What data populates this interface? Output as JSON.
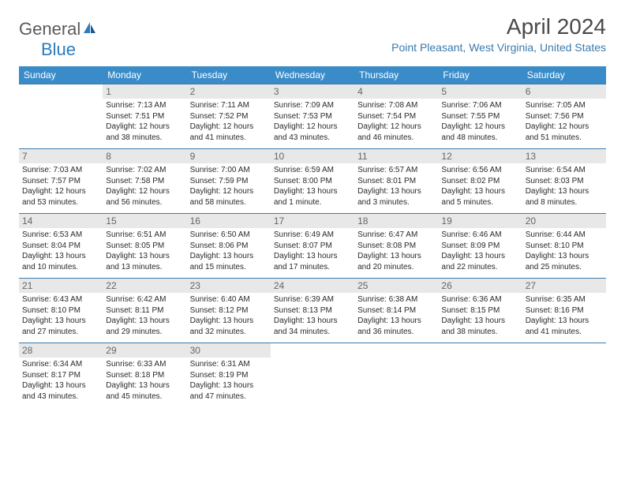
{
  "logo": {
    "general": "General",
    "blue": "Blue"
  },
  "title": "April 2024",
  "location": "Point Pleasant, West Virginia, United States",
  "colors": {
    "header_bg": "#3a8cc9",
    "header_text": "#ffffff",
    "accent": "#3a7aad",
    "day_bg": "#e8e8e8",
    "body_text": "#2a2a2a",
    "logo_gray": "#5a5a5a",
    "logo_blue": "#2b7bbf"
  },
  "day_labels": [
    "Sunday",
    "Monday",
    "Tuesday",
    "Wednesday",
    "Thursday",
    "Friday",
    "Saturday"
  ],
  "weeks": [
    [
      null,
      {
        "n": "1",
        "sr": "7:13 AM",
        "ss": "7:51 PM",
        "dl": "12 hours and 38 minutes."
      },
      {
        "n": "2",
        "sr": "7:11 AM",
        "ss": "7:52 PM",
        "dl": "12 hours and 41 minutes."
      },
      {
        "n": "3",
        "sr": "7:09 AM",
        "ss": "7:53 PM",
        "dl": "12 hours and 43 minutes."
      },
      {
        "n": "4",
        "sr": "7:08 AM",
        "ss": "7:54 PM",
        "dl": "12 hours and 46 minutes."
      },
      {
        "n": "5",
        "sr": "7:06 AM",
        "ss": "7:55 PM",
        "dl": "12 hours and 48 minutes."
      },
      {
        "n": "6",
        "sr": "7:05 AM",
        "ss": "7:56 PM",
        "dl": "12 hours and 51 minutes."
      }
    ],
    [
      {
        "n": "7",
        "sr": "7:03 AM",
        "ss": "7:57 PM",
        "dl": "12 hours and 53 minutes."
      },
      {
        "n": "8",
        "sr": "7:02 AM",
        "ss": "7:58 PM",
        "dl": "12 hours and 56 minutes."
      },
      {
        "n": "9",
        "sr": "7:00 AM",
        "ss": "7:59 PM",
        "dl": "12 hours and 58 minutes."
      },
      {
        "n": "10",
        "sr": "6:59 AM",
        "ss": "8:00 PM",
        "dl": "13 hours and 1 minute."
      },
      {
        "n": "11",
        "sr": "6:57 AM",
        "ss": "8:01 PM",
        "dl": "13 hours and 3 minutes."
      },
      {
        "n": "12",
        "sr": "6:56 AM",
        "ss": "8:02 PM",
        "dl": "13 hours and 5 minutes."
      },
      {
        "n": "13",
        "sr": "6:54 AM",
        "ss": "8:03 PM",
        "dl": "13 hours and 8 minutes."
      }
    ],
    [
      {
        "n": "14",
        "sr": "6:53 AM",
        "ss": "8:04 PM",
        "dl": "13 hours and 10 minutes."
      },
      {
        "n": "15",
        "sr": "6:51 AM",
        "ss": "8:05 PM",
        "dl": "13 hours and 13 minutes."
      },
      {
        "n": "16",
        "sr": "6:50 AM",
        "ss": "8:06 PM",
        "dl": "13 hours and 15 minutes."
      },
      {
        "n": "17",
        "sr": "6:49 AM",
        "ss": "8:07 PM",
        "dl": "13 hours and 17 minutes."
      },
      {
        "n": "18",
        "sr": "6:47 AM",
        "ss": "8:08 PM",
        "dl": "13 hours and 20 minutes."
      },
      {
        "n": "19",
        "sr": "6:46 AM",
        "ss": "8:09 PM",
        "dl": "13 hours and 22 minutes."
      },
      {
        "n": "20",
        "sr": "6:44 AM",
        "ss": "8:10 PM",
        "dl": "13 hours and 25 minutes."
      }
    ],
    [
      {
        "n": "21",
        "sr": "6:43 AM",
        "ss": "8:10 PM",
        "dl": "13 hours and 27 minutes."
      },
      {
        "n": "22",
        "sr": "6:42 AM",
        "ss": "8:11 PM",
        "dl": "13 hours and 29 minutes."
      },
      {
        "n": "23",
        "sr": "6:40 AM",
        "ss": "8:12 PM",
        "dl": "13 hours and 32 minutes."
      },
      {
        "n": "24",
        "sr": "6:39 AM",
        "ss": "8:13 PM",
        "dl": "13 hours and 34 minutes."
      },
      {
        "n": "25",
        "sr": "6:38 AM",
        "ss": "8:14 PM",
        "dl": "13 hours and 36 minutes."
      },
      {
        "n": "26",
        "sr": "6:36 AM",
        "ss": "8:15 PM",
        "dl": "13 hours and 38 minutes."
      },
      {
        "n": "27",
        "sr": "6:35 AM",
        "ss": "8:16 PM",
        "dl": "13 hours and 41 minutes."
      }
    ],
    [
      {
        "n": "28",
        "sr": "6:34 AM",
        "ss": "8:17 PM",
        "dl": "13 hours and 43 minutes."
      },
      {
        "n": "29",
        "sr": "6:33 AM",
        "ss": "8:18 PM",
        "dl": "13 hours and 45 minutes."
      },
      {
        "n": "30",
        "sr": "6:31 AM",
        "ss": "8:19 PM",
        "dl": "13 hours and 47 minutes."
      },
      null,
      null,
      null,
      null
    ]
  ],
  "labels": {
    "sunrise": "Sunrise:",
    "sunset": "Sunset:",
    "daylight": "Daylight:"
  }
}
